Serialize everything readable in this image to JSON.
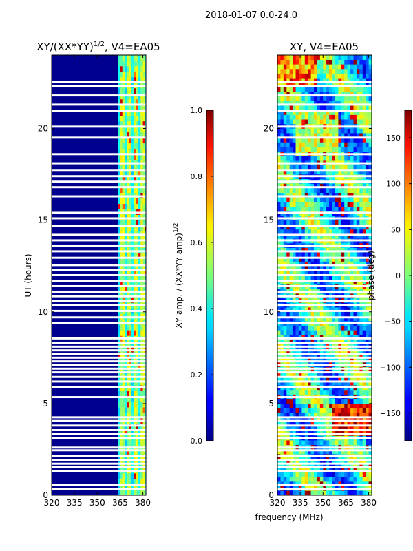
{
  "figure": {
    "suptitle": "2018-01-07 0.0-24.0",
    "xlabel": "frequency (MHz)"
  },
  "chart_data": [
    {
      "type": "heatmap",
      "title_main": "XY/(XX*YY)",
      "title_sup": "1/2",
      "title_rest": ", V4=EA05",
      "xlabel": "",
      "ylabel": "UT (hours)",
      "xlim": [
        320,
        382
      ],
      "ylim": [
        0,
        24
      ],
      "xticks": [
        320,
        335,
        350,
        365,
        380
      ],
      "yticks": [
        0,
        5,
        10,
        15,
        20
      ],
      "colorbar": {
        "label_main": "XY amp. / (XX*YY amp)",
        "label_sup": "1/2",
        "range": [
          0.0,
          1.0
        ],
        "ticks": [
          0.0,
          0.2,
          0.4,
          0.6,
          0.8,
          1.0
        ],
        "tick_labels": [
          "0.0",
          "0.2",
          "0.4",
          "0.6",
          "0.8",
          "1.0"
        ]
      },
      "active_band_mhz": [
        363.5,
        382
      ],
      "bright_channels_mhz": [
        [
          366,
          368
        ],
        [
          370.5,
          372.5
        ],
        [
          375,
          377
        ],
        [
          379,
          381
        ]
      ]
    },
    {
      "type": "heatmap",
      "title": "XY, V4=EA05",
      "xlabel": "",
      "ylabel": "",
      "xlim": [
        320,
        382
      ],
      "ylim": [
        0,
        24
      ],
      "xticks": [
        320,
        335,
        350,
        365,
        380
      ],
      "yticks": [
        0,
        5,
        10,
        15,
        20
      ],
      "colorbar": {
        "label": "phase (deg)",
        "range": [
          -180,
          180
        ],
        "ticks": [
          -150,
          -100,
          -50,
          0,
          50,
          100,
          150
        ],
        "tick_labels": [
          "−150",
          "−100",
          "−50",
          "0",
          "50",
          "100",
          "150"
        ]
      }
    }
  ],
  "flagged_hours": [
    0.35,
    0.55,
    1.3,
    1.55,
    1.72,
    1.9,
    2.15,
    2.45,
    2.6,
    3.1,
    3.35,
    3.55,
    3.8,
    4.05,
    4.25,
    5.35,
    5.9,
    6.2,
    6.45,
    6.7,
    6.9,
    7.1,
    7.3,
    7.5,
    7.7,
    7.9,
    8.1,
    8.3,
    8.55,
    9.4,
    9.7,
    10.05,
    10.35,
    10.6,
    10.85,
    11.1,
    11.4,
    11.7,
    12.0,
    12.3,
    12.55,
    12.95,
    13.3,
    13.6,
    13.9,
    14.2,
    14.7,
    15.1,
    15.4,
    16.3,
    16.8,
    17.1,
    17.4,
    17.7,
    18.1,
    18.6,
    19.5,
    20.1,
    20.95,
    21.3,
    21.8,
    22.3,
    22.55
  ]
}
